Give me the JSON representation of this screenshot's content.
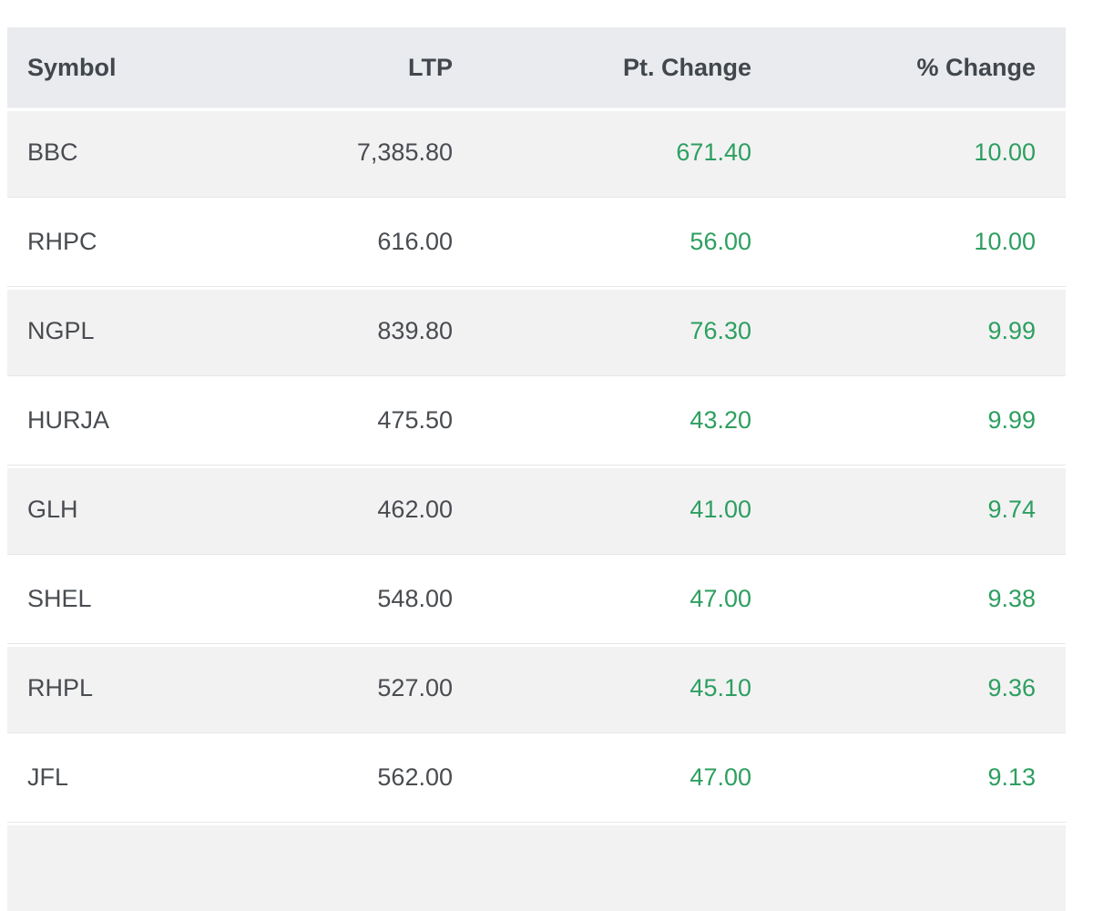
{
  "colors": {
    "positive_green": "#2d9f60",
    "header_bg": "#e9ebee",
    "stripe_row_bg": "#f2f2f3",
    "header_text": "#42474d",
    "cell_text": "#494c50"
  },
  "table": {
    "columns": [
      {
        "key": "symbol",
        "label": "Symbol",
        "align": "left"
      },
      {
        "key": "ltp",
        "label": "LTP",
        "align": "right"
      },
      {
        "key": "pt_change",
        "label": "Pt. Change",
        "align": "right"
      },
      {
        "key": "pct_change",
        "label": "% Change",
        "align": "right"
      }
    ],
    "rows": [
      {
        "symbol": "BBC",
        "ltp": "7,385.80",
        "pt_change": "671.40",
        "pct_change": "10.00"
      },
      {
        "symbol": "RHPC",
        "ltp": "616.00",
        "pt_change": "56.00",
        "pct_change": "10.00"
      },
      {
        "symbol": "NGPL",
        "ltp": "839.80",
        "pt_change": "76.30",
        "pct_change": "9.99"
      },
      {
        "symbol": "HURJA",
        "ltp": "475.50",
        "pt_change": "43.20",
        "pct_change": "9.99"
      },
      {
        "symbol": "GLH",
        "ltp": "462.00",
        "pt_change": "41.00",
        "pct_change": "9.74"
      },
      {
        "symbol": "SHEL",
        "ltp": "548.00",
        "pt_change": "47.00",
        "pct_change": "9.38"
      },
      {
        "symbol": "RHPL",
        "ltp": "527.00",
        "pt_change": "45.10",
        "pct_change": "9.36"
      },
      {
        "symbol": "JFL",
        "ltp": "562.00",
        "pt_change": "47.00",
        "pct_change": "9.13"
      }
    ]
  }
}
